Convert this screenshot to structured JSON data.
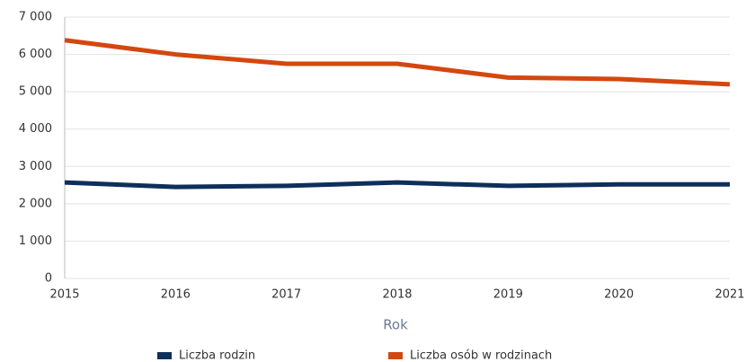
{
  "chart_data": {
    "type": "line",
    "x": [
      2015,
      2016,
      2017,
      2018,
      2019,
      2020,
      2021
    ],
    "xlim": [
      2015,
      2021
    ],
    "xticks": [
      2015,
      2016,
      2017,
      2018,
      2019,
      2020,
      2021
    ],
    "xlabel": "Rok",
    "ylim": [
      0,
      7000
    ],
    "yticks": [
      0,
      {
        "value": 1000,
        "label": "1 000"
      },
      {
        "value": 2000,
        "label": "2 000"
      },
      {
        "value": 3000,
        "label": "3 000"
      },
      {
        "value": 4000,
        "label": "4 000"
      },
      {
        "value": 5000,
        "label": "5 000"
      },
      {
        "value": 6000,
        "label": "6 000"
      },
      {
        "value": 7000,
        "label": "7 000"
      }
    ],
    "grid": true,
    "legend": "bottom",
    "series": [
      {
        "name": "Liczba rodzin",
        "color": "#0e2f5c",
        "values": [
          2570,
          2450,
          2480,
          2570,
          2480,
          2520,
          2520
        ]
      },
      {
        "name": "Liczba osób w rodzinach",
        "color": "#d4470f",
        "values": [
          6380,
          6000,
          5750,
          5750,
          5380,
          5340,
          5200
        ]
      }
    ]
  }
}
